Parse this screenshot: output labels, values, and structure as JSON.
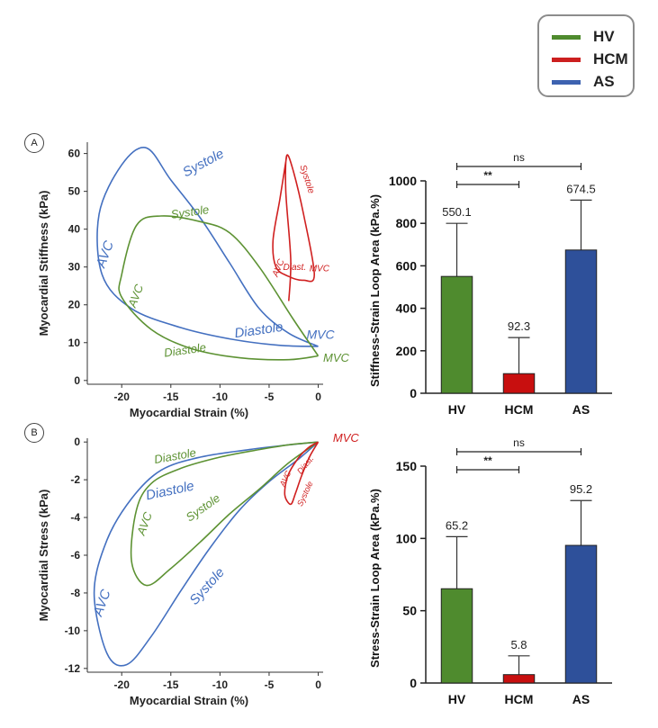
{
  "legend": {
    "items": [
      {
        "label": "HV",
        "color": "#4f8b2e"
      },
      {
        "label": "HCM",
        "color": "#cc1f1f"
      },
      {
        "label": "AS",
        "color": "#3d62b0"
      }
    ]
  },
  "panels": {
    "a": "A",
    "b": "B"
  },
  "colors": {
    "hv": "#5d9233",
    "hv_bar": "#4f8b2e",
    "hcm": "#d02020",
    "hcm_bar": "#c80f0f",
    "as": "#4470c0",
    "as_bar": "#2e509a"
  },
  "chart_data": [
    {
      "type": "line",
      "panel": "A-left",
      "xlabel": "Myocardial Strain (%)",
      "ylabel": "Myocardial Stiffness (kPa)",
      "xlim": [
        -23.5,
        0.5
      ],
      "ylim": [
        -1,
        63
      ],
      "xticks": [
        -20,
        -15,
        -10,
        -5,
        0
      ],
      "yticks": [
        0,
        10,
        20,
        30,
        40,
        50,
        60
      ],
      "series": [
        {
          "key": "AS",
          "points": [
            [
              0,
              9
            ],
            [
              -3,
              12.5
            ],
            [
              -6,
              19
            ],
            [
              -9,
              31
            ],
            [
              -12,
              43
            ],
            [
              -15,
              53
            ],
            [
              -17.5,
              61.5
            ],
            [
              -20,
              57
            ],
            [
              -22.3,
              44
            ],
            [
              -22,
              28
            ],
            [
              -19,
              19
            ],
            [
              -14,
              14
            ],
            [
              -9,
              11
            ],
            [
              -4,
              9.3
            ],
            [
              0,
              9
            ]
          ]
        },
        {
          "key": "HV",
          "points": [
            [
              0,
              6.5
            ],
            [
              -2.5,
              16
            ],
            [
              -6,
              30
            ],
            [
              -9,
              39
            ],
            [
              -12,
              42
            ],
            [
              -16,
              43.5
            ],
            [
              -18.5,
              41
            ],
            [
              -20,
              28
            ],
            [
              -20,
              22
            ],
            [
              -17,
              13.5
            ],
            [
              -13,
              8.5
            ],
            [
              -8,
              6
            ],
            [
              -3,
              5.5
            ],
            [
              0,
              6.5
            ]
          ]
        },
        {
          "key": "HCM",
          "points": [
            [
              -3,
              21
            ],
            [
              -2.8,
              32
            ],
            [
              -3.3,
              50
            ],
            [
              -3.2,
              59.5
            ],
            [
              -2.5,
              55
            ],
            [
              -1.5,
              44
            ],
            [
              -0.4,
              28
            ],
            [
              -1.5,
              26.5
            ],
            [
              -3,
              27.5
            ],
            [
              -4.3,
              30
            ],
            [
              -4.6,
              37
            ],
            [
              -3.9,
              48
            ],
            [
              -3.2,
              59.5
            ]
          ]
        }
      ],
      "annotations": [
        {
          "text": "Systole",
          "series": "AS"
        },
        {
          "text": "AVC",
          "series": "AS"
        },
        {
          "text": "Diastole",
          "series": "AS"
        },
        {
          "text": "MVC",
          "series": "AS"
        },
        {
          "text": "Systole",
          "series": "HV"
        },
        {
          "text": "AVC",
          "series": "HV"
        },
        {
          "text": "Diastole",
          "series": "HV"
        },
        {
          "text": "MVC",
          "series": "HV"
        },
        {
          "text": "Systole",
          "series": "HCM"
        },
        {
          "text": "AVC",
          "series": "HCM"
        },
        {
          "text": "Diast.",
          "series": "HCM"
        },
        {
          "text": "MVC",
          "series": "HCM"
        }
      ]
    },
    {
      "type": "bar",
      "panel": "A-right",
      "ylabel": "Stiffness-Strain Loop Area (kPa.%)",
      "categories": [
        "HV",
        "HCM",
        "AS"
      ],
      "values": [
        550.1,
        92.3,
        674.5
      ],
      "value_labels": [
        "550.1",
        "92.3",
        "674.5"
      ],
      "errors": [
        250,
        170,
        235
      ],
      "ylim": [
        0,
        1000
      ],
      "yticks": [
        0,
        200,
        400,
        600,
        800,
        1000
      ],
      "significance": [
        {
          "from": 0,
          "to": 2,
          "label": "ns"
        },
        {
          "from": 0,
          "to": 1,
          "label": "**"
        }
      ]
    },
    {
      "type": "line",
      "panel": "B-left",
      "xlabel": "Myocardial Strain (%)",
      "ylabel": "Myocardial Stress (kPa)",
      "xlim": [
        -23.5,
        0.5
      ],
      "ylim": [
        -12.2,
        0.2
      ],
      "xticks": [
        -20,
        -15,
        -10,
        -5,
        0
      ],
      "yticks": [
        0,
        -2,
        -4,
        -6,
        -8,
        -10,
        -12
      ],
      "series": [
        {
          "key": "AS",
          "points": [
            [
              0,
              0
            ],
            [
              -2,
              -0.9
            ],
            [
              -5,
              -2.1
            ],
            [
              -8,
              -3.6
            ],
            [
              -11,
              -5.6
            ],
            [
              -14,
              -7.9
            ],
            [
              -17,
              -10.3
            ],
            [
              -19.5,
              -11.8
            ],
            [
              -21.5,
              -11.2
            ],
            [
              -22.8,
              -8
            ],
            [
              -21.5,
              -5.2
            ],
            [
              -19,
              -3
            ],
            [
              -16,
              -1.5
            ],
            [
              -12,
              -0.8
            ],
            [
              -7,
              -0.4
            ],
            [
              -3,
              -0.15
            ],
            [
              0,
              0
            ]
          ]
        },
        {
          "key": "HV",
          "points": [
            [
              0,
              0
            ],
            [
              -3,
              -1.1
            ],
            [
              -6,
              -2.5
            ],
            [
              -9,
              -3.8
            ],
            [
              -12,
              -5.3
            ],
            [
              -15,
              -6.7
            ],
            [
              -17.5,
              -7.6
            ],
            [
              -19,
              -6.3
            ],
            [
              -18.5,
              -3.6
            ],
            [
              -17,
              -2.2
            ],
            [
              -14,
              -1.4
            ],
            [
              -10,
              -0.8
            ],
            [
              -6,
              -0.4
            ],
            [
              -3,
              -0.15
            ],
            [
              0,
              0
            ]
          ]
        },
        {
          "key": "HCM",
          "points": [
            [
              0,
              0
            ],
            [
              -0.9,
              -0.8
            ],
            [
              -1.7,
              -1.8
            ],
            [
              -2.3,
              -2.7
            ],
            [
              -2.8,
              -3.3
            ],
            [
              -3.4,
              -2.8
            ],
            [
              -3.1,
              -1.8
            ],
            [
              -2.1,
              -0.9
            ],
            [
              -1,
              -0.3
            ],
            [
              0,
              0
            ]
          ]
        }
      ],
      "annotations": [
        {
          "text": "MVC",
          "series": "HCM"
        },
        {
          "text": "Diastole",
          "series": "HV"
        },
        {
          "text": "AVC",
          "series": "HV"
        },
        {
          "text": "Systole",
          "series": "HV"
        },
        {
          "text": "Diastole",
          "series": "AS"
        },
        {
          "text": "AVC",
          "series": "AS"
        },
        {
          "text": "Systole",
          "series": "AS"
        },
        {
          "text": "AVC",
          "series": "HCM"
        },
        {
          "text": "Diast.",
          "series": "HCM"
        },
        {
          "text": "Systole",
          "series": "HCM"
        }
      ]
    },
    {
      "type": "bar",
      "panel": "B-right",
      "ylabel": "Stress-Strain Loop Area (kPa.%)",
      "categories": [
        "HV",
        "HCM",
        "AS"
      ],
      "values": [
        65.2,
        5.8,
        95.2
      ],
      "value_labels": [
        "65.2",
        "5.8",
        "95.2"
      ],
      "errors": [
        36,
        13,
        31
      ],
      "ylim": [
        0,
        150
      ],
      "yticks": [
        0,
        50,
        100,
        150
      ],
      "significance": [
        {
          "from": 0,
          "to": 2,
          "label": "ns"
        },
        {
          "from": 0,
          "to": 1,
          "label": "**"
        }
      ]
    }
  ]
}
